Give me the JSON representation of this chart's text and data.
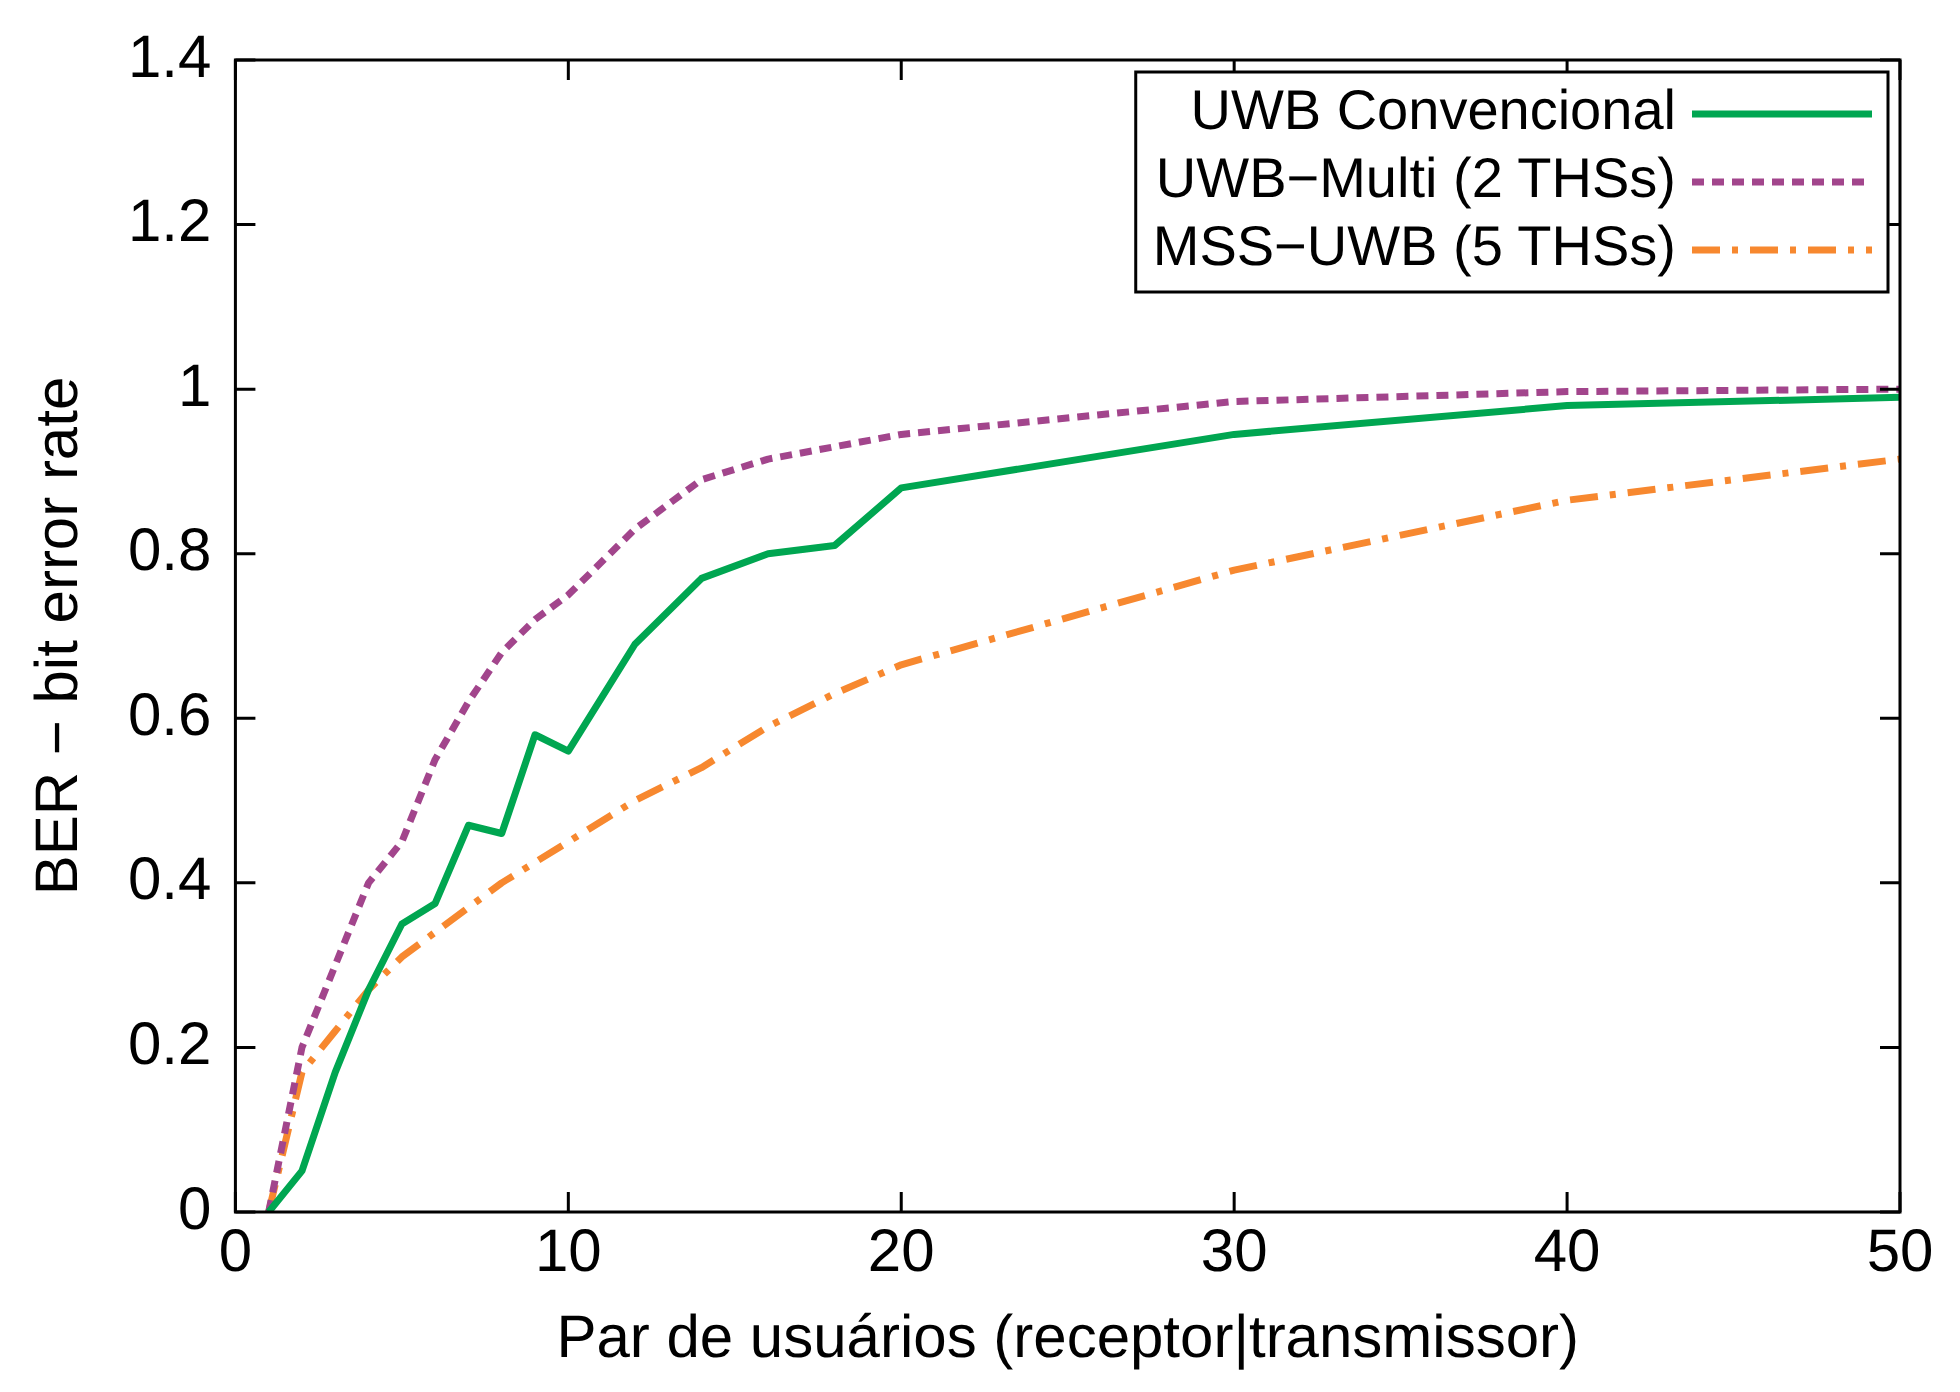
{
  "chart_data": {
    "type": "line",
    "xlabel": "Par de usuários (receptor|transmissor)",
    "ylabel": "BER − bit error rate",
    "xlim": [
      0,
      50
    ],
    "xticks": [
      0,
      10,
      20,
      30,
      40,
      50
    ],
    "ylim": [
      0,
      1.4
    ],
    "yticks": [
      0,
      0.2,
      0.4,
      0.6,
      0.8,
      1,
      1.2,
      1.4
    ],
    "grid": false,
    "legend": "top right",
    "marker": "none",
    "series": [
      {
        "name": "UWB Convencional",
        "color": "#00a651",
        "line_style": "solid",
        "x": [
          1,
          2,
          3,
          4,
          5,
          6,
          7,
          8,
          9,
          10,
          12,
          14,
          16,
          18,
          20,
          30,
          40,
          50
        ],
        "values": [
          0,
          0.05,
          0.17,
          0.27,
          0.35,
          0.375,
          0.47,
          0.46,
          0.58,
          0.56,
          0.69,
          0.77,
          0.8,
          0.81,
          0.88,
          0.945,
          0.98,
          0.99
        ]
      },
      {
        "name": "UWB−Multi (2 THSs)",
        "color": "#a2458c",
        "line_style": "dotted",
        "x": [
          1,
          2,
          3,
          4,
          5,
          6,
          7,
          8,
          9,
          10,
          12,
          14,
          16,
          18,
          20,
          30,
          40,
          50
        ],
        "values": [
          0,
          0.2,
          0.3,
          0.4,
          0.45,
          0.55,
          0.62,
          0.68,
          0.72,
          0.75,
          0.83,
          0.89,
          0.915,
          0.93,
          0.945,
          0.985,
          0.997,
          1
        ]
      },
      {
        "name": "MSS−UWB (5 THSs)",
        "color": "#f7882f",
        "line_style": "dashed",
        "x": [
          1,
          2,
          3,
          4,
          5,
          6,
          8,
          10,
          12,
          14,
          16,
          18,
          20,
          30,
          40,
          50
        ],
        "values": [
          0,
          0.17,
          0.22,
          0.27,
          0.31,
          0.34,
          0.4,
          0.45,
          0.5,
          0.54,
          0.59,
          0.63,
          0.665,
          0.78,
          0.865,
          0.915
        ]
      }
    ]
  }
}
